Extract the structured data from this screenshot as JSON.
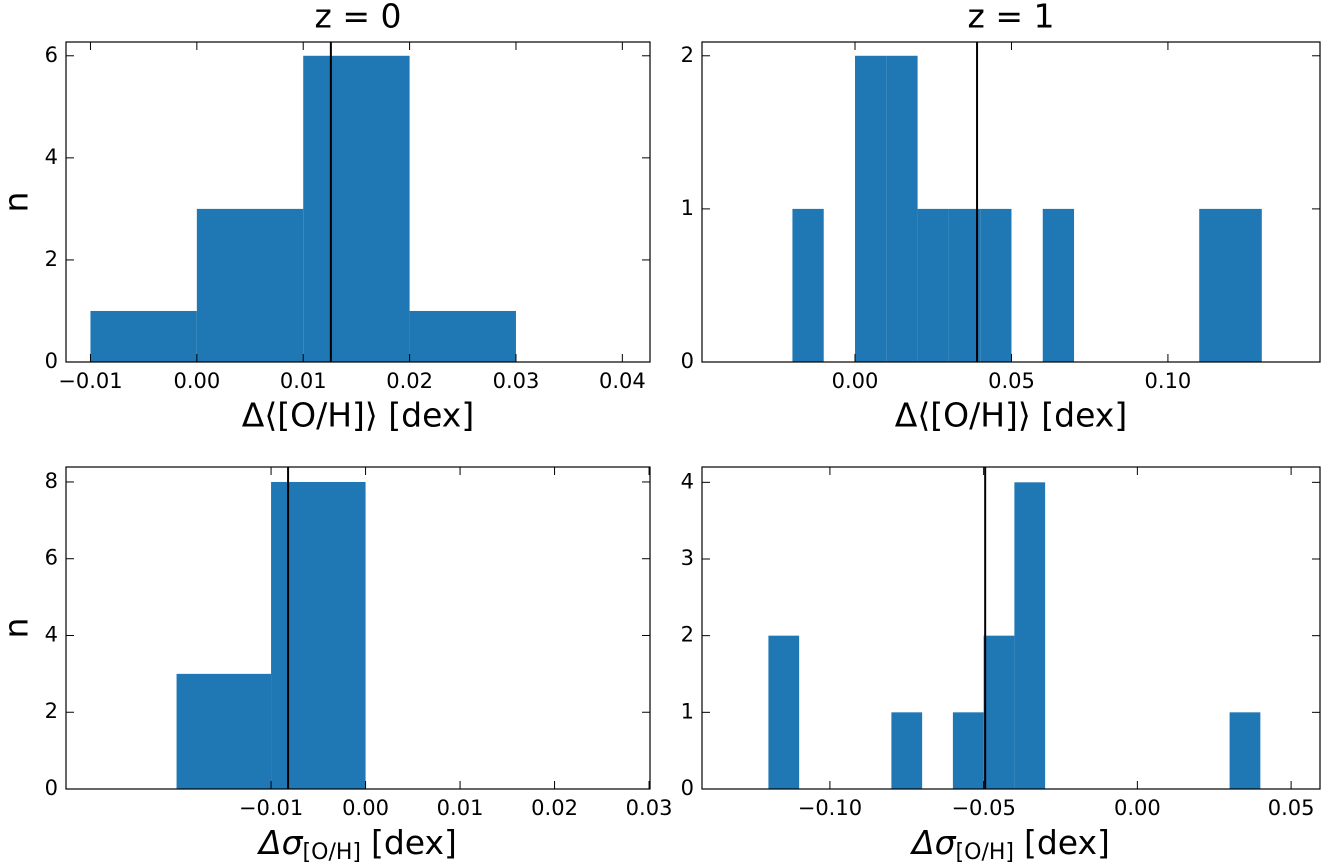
{
  "chart_data": [
    {
      "type": "histogram",
      "title": "z = 0",
      "xlabel": "Δ⟨[O/H]⟩ [dex]",
      "ylabel": "n",
      "bins": [
        -0.01,
        0,
        0.01,
        0.02,
        0.03
      ],
      "values": [
        1,
        3,
        6,
        1
      ],
      "color": "#1f77b4",
      "vline": 0.0126,
      "vline_color": "#000000",
      "xlim": [
        -0.0123,
        0.0426
      ],
      "ylim": [
        0,
        6.27
      ],
      "xticks": [
        {
          "value": -0.01,
          "label": "−0.01"
        },
        {
          "value": 0,
          "label": "0.00"
        },
        0.01,
        0.02,
        0.03,
        0.04
      ],
      "yticks": [
        0,
        2,
        4,
        6
      ]
    },
    {
      "type": "histogram",
      "title": "z = 1",
      "xlabel": "Δ⟨[O/H]⟩ [dex]",
      "bins": [
        -0.02,
        -0.01,
        0,
        0.01,
        0.02,
        0.03,
        0.04,
        0.05,
        0.06,
        0.07,
        0.08,
        0.09,
        0.1,
        0.11,
        0.12,
        0.13
      ],
      "values": [
        1,
        0,
        2,
        2,
        1,
        1,
        1,
        0,
        1,
        0,
        0,
        0,
        0,
        1,
        1
      ],
      "color": "#1f77b4",
      "vline": 0.039,
      "vline_color": "#000000",
      "xlim": [
        -0.0489,
        0.1486
      ],
      "ylim": [
        0,
        2.09
      ],
      "xticks": [
        {
          "value": 0,
          "label": "0.00"
        },
        0.05,
        {
          "value": 0.1,
          "label": "0.10"
        }
      ],
      "yticks": [
        0,
        1,
        2
      ]
    },
    {
      "type": "histogram",
      "xlabel": {
        "symbol": "Δσ",
        "subscript": "[O/H]",
        "unit": "[dex]"
      },
      "ylabel": "n",
      "bins": [
        -0.02,
        -0.01,
        0
      ],
      "values": [
        3,
        8
      ],
      "color": "#1f77b4",
      "vline": -0.0082,
      "vline_color": "#000000",
      "xlim": [
        -0.0317,
        0.0301
      ],
      "ylim": [
        0,
        8.39
      ],
      "xticks": [
        {
          "value": -0.01,
          "label": "−0.01"
        },
        {
          "value": 0,
          "label": "0.00"
        },
        0.01,
        0.02,
        0.03
      ],
      "yticks": [
        0,
        2,
        4,
        6,
        8
      ]
    },
    {
      "type": "histogram",
      "xlabel": {
        "symbol": "Δσ",
        "subscript": "[O/H]",
        "unit": "[dex]"
      },
      "bins": [
        -0.12,
        -0.11,
        -0.1,
        -0.09,
        -0.08,
        -0.07,
        -0.06,
        -0.05,
        -0.04,
        -0.03,
        -0.02,
        -0.01,
        0,
        0.01,
        0.02,
        0.03,
        0.04
      ],
      "values": [
        2,
        0,
        0,
        0,
        1,
        0,
        1,
        2,
        4,
        0,
        0,
        0,
        0,
        0,
        0,
        1
      ],
      "color": "#1f77b4",
      "vline": -0.0495,
      "vline_color": "#000000",
      "xlim": [
        -0.1416,
        0.0594
      ],
      "ylim": [
        0,
        4.2
      ],
      "xticks": [
        {
          "value": -0.1,
          "label": "−0.10"
        },
        {
          "value": -0.05,
          "label": "−0.05"
        },
        {
          "value": 0,
          "label": "0.00"
        },
        0.05
      ],
      "yticks": [
        0,
        1,
        2,
        3,
        4
      ]
    }
  ]
}
